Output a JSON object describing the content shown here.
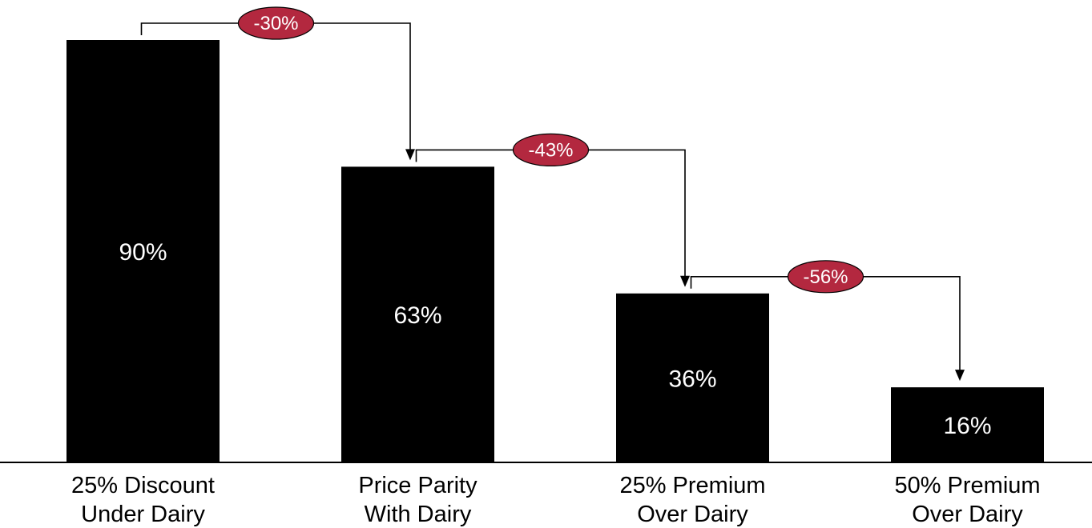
{
  "chart_data": {
    "type": "bar",
    "categories": [
      [
        "25% Discount",
        "Under Dairy"
      ],
      [
        "Price Parity",
        "With Dairy"
      ],
      [
        "25% Premium",
        "Over Dairy"
      ],
      [
        "50% Premium",
        "Over Dairy"
      ]
    ],
    "values": [
      90,
      63,
      36,
      16
    ],
    "value_labels": [
      "90%",
      "63%",
      "36%",
      "16%"
    ],
    "changes": [
      {
        "from": 0,
        "to": 1,
        "label": "-30%"
      },
      {
        "from": 1,
        "to": 2,
        "label": "-43%"
      },
      {
        "from": 2,
        "to": 3,
        "label": "-56%"
      }
    ],
    "ylim": [
      0,
      90
    ],
    "grid": false,
    "legend": "none",
    "title": "",
    "xlabel": "",
    "ylabel": ""
  },
  "colors": {
    "bar": "#000000",
    "value_text": "#ffffff",
    "badge_fill": "#b3283f",
    "badge_stroke": "#000000",
    "connector": "#000000",
    "axis": "#000000"
  }
}
